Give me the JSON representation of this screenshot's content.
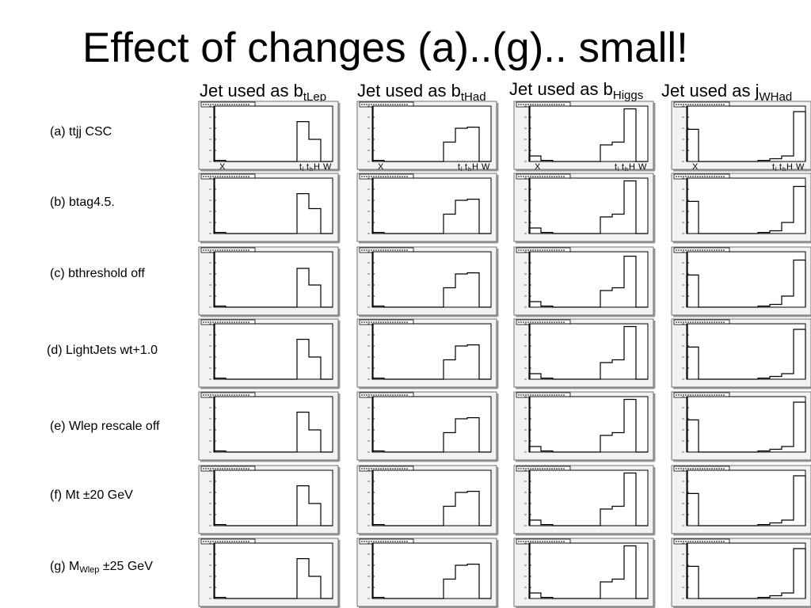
{
  "title": "Effect of changes (a)..(g).. small!",
  "columns": [
    {
      "prefix": "Jet used as b",
      "sub": "tLep"
    },
    {
      "prefix": "Jet used as b",
      "sub": "tHad"
    },
    {
      "prefix": "Jet used as b",
      "sub": "Higgs"
    },
    {
      "prefix": "Jet used as j",
      "sub": "WHad"
    }
  ],
  "rows": [
    {
      "text": "(a) ttjj CSC"
    },
    {
      "text": "(b) btag4.5."
    },
    {
      "text": "(c) bthreshold off"
    },
    {
      "text": "(d) LightJets wt+1.0"
    },
    {
      "text": "(e) Wlep rescale off"
    },
    {
      "text": "(f) Mt ±20 GeV"
    },
    {
      "text": "(g) M",
      "sub": "Wlep",
      "suffix": " ±25 GeV"
    }
  ],
  "axis_labels": {
    "x": "X",
    "tl": "t",
    "tl_sub": "l",
    "th": "t",
    "th_sub": "h",
    "h": "H",
    "w": "W"
  },
  "chart_data": {
    "type": "bar",
    "histogram_style": "step",
    "bins": 10,
    "ylim": [
      0,
      1
    ],
    "colors": {
      "frame": "#6f6f6f",
      "panel_bg": "#f2f2f2",
      "plot_bg": "#ffffff",
      "line": "#000000"
    },
    "panels": [
      {
        "row": 0,
        "col": 0,
        "values": [
          0.02,
          0,
          0,
          0,
          0,
          0,
          0,
          0.72,
          0.4,
          0
        ]
      },
      {
        "row": 0,
        "col": 1,
        "values": [
          0.02,
          0,
          0,
          0,
          0,
          0,
          0.35,
          0.6,
          0.62,
          0
        ]
      },
      {
        "row": 0,
        "col": 2,
        "values": [
          0.1,
          0.02,
          0,
          0,
          0,
          0,
          0.3,
          0.35,
          0.95,
          0
        ]
      },
      {
        "row": 0,
        "col": 3,
        "values": [
          0.58,
          0,
          0,
          0,
          0,
          0,
          0.02,
          0.05,
          0.1,
          0.9
        ]
      },
      {
        "row": 1,
        "col": 0,
        "values": [
          0.02,
          0,
          0,
          0,
          0,
          0,
          0,
          0.72,
          0.45,
          0
        ]
      },
      {
        "row": 1,
        "col": 1,
        "values": [
          0.02,
          0,
          0,
          0,
          0,
          0,
          0.35,
          0.6,
          0.62,
          0
        ]
      },
      {
        "row": 1,
        "col": 2,
        "values": [
          0.1,
          0.02,
          0,
          0,
          0,
          0,
          0.3,
          0.35,
          0.95,
          0
        ]
      },
      {
        "row": 1,
        "col": 3,
        "values": [
          0.58,
          0,
          0,
          0,
          0,
          0,
          0.02,
          0.05,
          0.2,
          0.85
        ]
      },
      {
        "row": 2,
        "col": 0,
        "values": [
          0.02,
          0,
          0,
          0,
          0,
          0,
          0,
          0.7,
          0.4,
          0
        ]
      },
      {
        "row": 2,
        "col": 1,
        "values": [
          0.02,
          0,
          0,
          0,
          0,
          0,
          0.35,
          0.6,
          0.62,
          0
        ]
      },
      {
        "row": 2,
        "col": 2,
        "values": [
          0.1,
          0.02,
          0,
          0,
          0,
          0,
          0.3,
          0.35,
          0.92,
          0
        ]
      },
      {
        "row": 2,
        "col": 3,
        "values": [
          0.58,
          0,
          0,
          0,
          0,
          0,
          0.02,
          0.05,
          0.2,
          0.85
        ]
      },
      {
        "row": 3,
        "col": 0,
        "values": [
          0.02,
          0,
          0,
          0,
          0,
          0,
          0,
          0.72,
          0.4,
          0
        ]
      },
      {
        "row": 3,
        "col": 1,
        "values": [
          0.02,
          0,
          0,
          0,
          0,
          0,
          0.35,
          0.6,
          0.62,
          0
        ]
      },
      {
        "row": 3,
        "col": 2,
        "values": [
          0.1,
          0.02,
          0,
          0,
          0,
          0,
          0.3,
          0.35,
          0.95,
          0
        ]
      },
      {
        "row": 3,
        "col": 3,
        "values": [
          0.58,
          0,
          0,
          0,
          0,
          0,
          0.02,
          0.05,
          0.1,
          0.9
        ]
      },
      {
        "row": 4,
        "col": 0,
        "values": [
          0.02,
          0,
          0,
          0,
          0,
          0,
          0,
          0.72,
          0.4,
          0
        ]
      },
      {
        "row": 4,
        "col": 1,
        "values": [
          0.02,
          0,
          0,
          0,
          0,
          0,
          0.35,
          0.6,
          0.62,
          0
        ]
      },
      {
        "row": 4,
        "col": 2,
        "values": [
          0.1,
          0.02,
          0,
          0,
          0,
          0,
          0.3,
          0.35,
          0.95,
          0
        ]
      },
      {
        "row": 4,
        "col": 3,
        "values": [
          0.58,
          0,
          0,
          0,
          0,
          0,
          0.02,
          0.05,
          0.1,
          0.9
        ]
      },
      {
        "row": 5,
        "col": 0,
        "values": [
          0.02,
          0,
          0,
          0,
          0,
          0,
          0,
          0.72,
          0.4,
          0
        ]
      },
      {
        "row": 5,
        "col": 1,
        "values": [
          0.02,
          0,
          0,
          0,
          0,
          0,
          0.35,
          0.6,
          0.62,
          0
        ]
      },
      {
        "row": 5,
        "col": 2,
        "values": [
          0.1,
          0.02,
          0,
          0,
          0,
          0,
          0.3,
          0.35,
          0.95,
          0
        ]
      },
      {
        "row": 5,
        "col": 3,
        "values": [
          0.58,
          0,
          0,
          0,
          0,
          0,
          0.02,
          0.05,
          0.1,
          0.9
        ]
      },
      {
        "row": 6,
        "col": 0,
        "values": [
          0.02,
          0,
          0,
          0,
          0,
          0,
          0,
          0.72,
          0.4,
          0
        ]
      },
      {
        "row": 6,
        "col": 1,
        "values": [
          0.02,
          0,
          0,
          0,
          0,
          0,
          0.35,
          0.6,
          0.62,
          0
        ]
      },
      {
        "row": 6,
        "col": 2,
        "values": [
          0.1,
          0.02,
          0,
          0,
          0,
          0,
          0.3,
          0.35,
          0.95,
          0
        ]
      },
      {
        "row": 6,
        "col": 3,
        "values": [
          0.58,
          0,
          0,
          0,
          0,
          0,
          0.02,
          0.05,
          0.1,
          0.9
        ]
      }
    ]
  }
}
